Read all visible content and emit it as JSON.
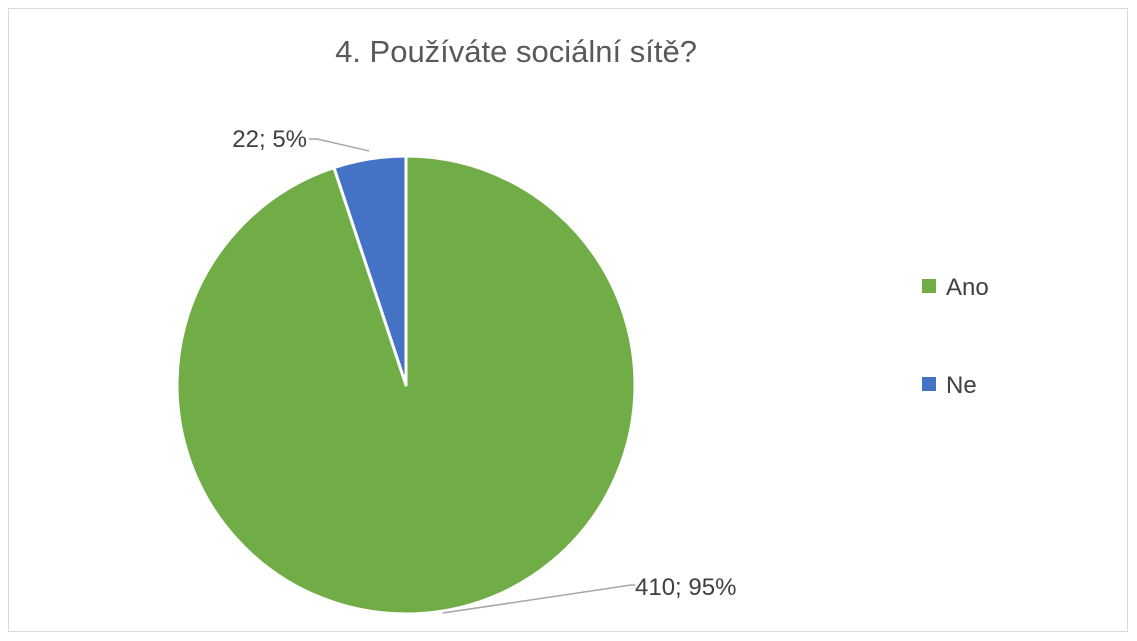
{
  "chart_data": {
    "type": "pie",
    "title": "4. Používáte sociální sítě?",
    "categories": [
      "Ano",
      "Ne"
    ],
    "values": [
      410,
      22
    ],
    "percents": [
      95,
      5
    ],
    "data_labels": [
      "410; 95%",
      "22; 5%"
    ],
    "colors": [
      "#70ad47",
      "#4472c4"
    ],
    "legend_position": "right",
    "start_angle_deg": 0,
    "direction": "counterclockwise"
  }
}
